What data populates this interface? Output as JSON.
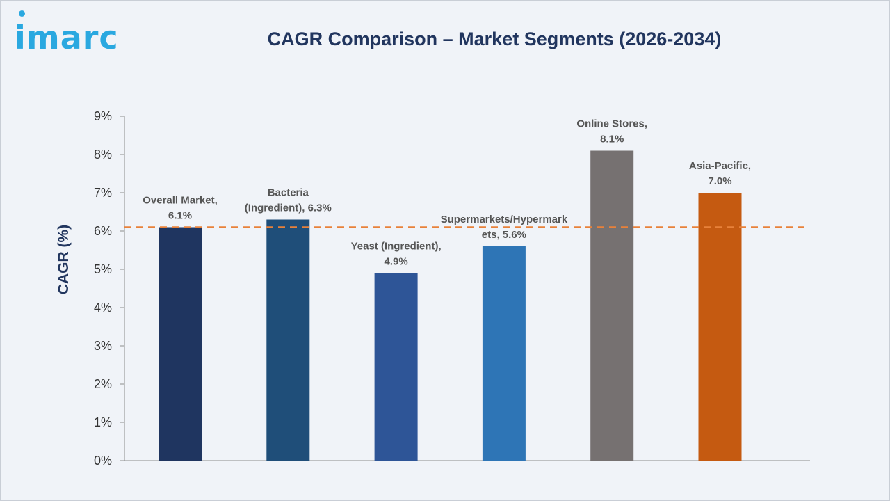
{
  "brand": {
    "logo_text": "imarc",
    "logo_color": "#2aa8e0"
  },
  "chart_data": {
    "type": "bar",
    "title": "CAGR Comparison – Market Segments (2026-2034)",
    "ylabel": "CAGR (%)",
    "xlabel": "",
    "ylim": [
      0,
      9
    ],
    "yticks": [
      "0%",
      "1%",
      "2%",
      "3%",
      "4%",
      "5%",
      "6%",
      "7%",
      "8%",
      "9%"
    ],
    "grid": false,
    "reference_line": {
      "value": 6.1,
      "style": "dashed",
      "color": "#e8813a"
    },
    "bars": [
      {
        "category": "Overall Market",
        "value": 6.1,
        "label_lines": [
          "Overall Market,",
          "6.1%"
        ],
        "color": "#1f3560"
      },
      {
        "category": "Bacteria (Ingredient)",
        "value": 6.3,
        "label_lines": [
          "Bacteria",
          "(Ingredient), 6.3%"
        ],
        "color": "#1f4e79"
      },
      {
        "category": "Yeast (Ingredient)",
        "value": 4.9,
        "label_lines": [
          "Yeast (Ingredient),",
          "4.9%"
        ],
        "color": "#2e5597"
      },
      {
        "category": "Supermarkets/Hypermarkets",
        "value": 5.6,
        "label_lines": [
          "Supermarkets/Hypermark",
          "ets, 5.6%"
        ],
        "color": "#2e75b6"
      },
      {
        "category": "Online Stores",
        "value": 8.1,
        "label_lines": [
          "Online Stores,",
          "8.1%"
        ],
        "color": "#767171"
      },
      {
        "category": "Asia-Pacific",
        "value": 7.0,
        "label_lines": [
          "Asia-Pacific,",
          "7.0%"
        ],
        "color": "#c55a11"
      }
    ]
  }
}
